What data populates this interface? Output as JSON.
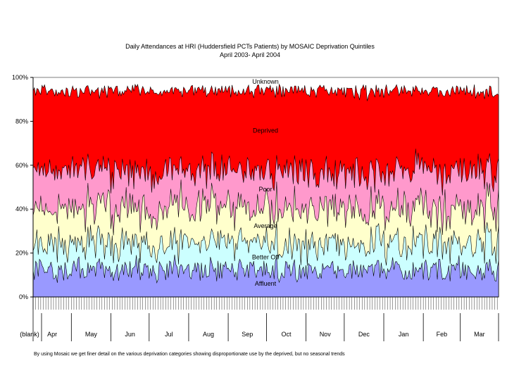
{
  "chart_data": {
    "type": "area",
    "stacking": "percent",
    "title": "Daily Attendances at HRI (Huddersfield PCTs Patients) by MOSAIC Deprivation Quintiles",
    "subtitle": "April 2003- April 2004",
    "xlabel": "",
    "ylabel": "",
    "ylim": [
      0,
      100
    ],
    "y_ticks": [
      "0%",
      "20%",
      "40%",
      "60%",
      "80%",
      "100%"
    ],
    "month_categories": [
      "(blank)",
      "Apr",
      "May",
      "Jun",
      "Jul",
      "Aug",
      "Sep",
      "Oct",
      "Nov",
      "Dec",
      "Jan",
      "Feb",
      "Mar"
    ],
    "x_range": [
      "01-Apr-2003",
      "31-Mar-2004"
    ],
    "legend": "none (series labelled inside bands)",
    "series": [
      {
        "name": "Affluent",
        "approx_mean_share_pct": 12,
        "approx_range_pct": [
          6,
          19
        ],
        "color": "#9999FF"
      },
      {
        "name": "Better Off",
        "approx_mean_share_pct": 12,
        "approx_range_pct": [
          5,
          20
        ],
        "color": "#CCFFFF"
      },
      {
        "name": "Average",
        "approx_mean_share_pct": 16,
        "approx_range_pct": [
          8,
          25
        ],
        "color": "#FFFFCC"
      },
      {
        "name": "Poor",
        "approx_mean_share_pct": 17,
        "approx_range_pct": [
          8,
          26
        ],
        "color": "#FF99CC"
      },
      {
        "name": "Deprived",
        "approx_mean_share_pct": 36,
        "approx_range_pct": [
          25,
          45
        ],
        "color": "#FF0000"
      },
      {
        "name": "Unknown",
        "approx_mean_share_pct": 6,
        "approx_range_pct": [
          3,
          10
        ],
        "color": "#FFFFFF"
      }
    ]
  },
  "footnote": "By using Mosaic we get finer detail on the various deprivation categories showing disproportionate use by the deprived, but no seasonal trends"
}
